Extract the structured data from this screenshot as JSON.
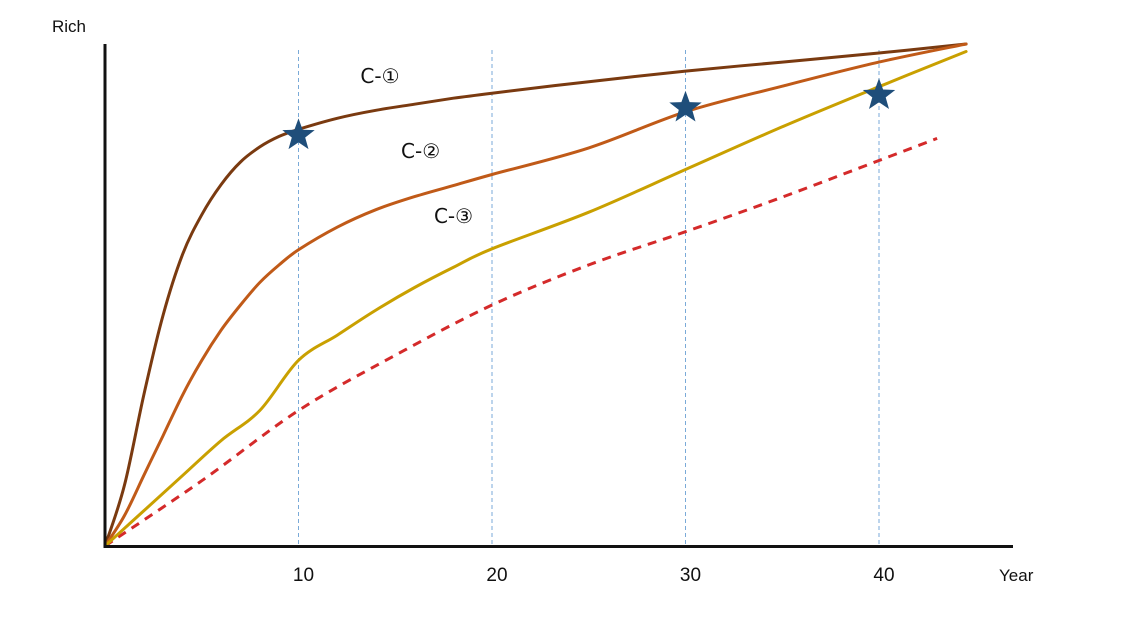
{
  "chart_data": {
    "type": "line",
    "xlabel": "Year",
    "ylabel": "Rich",
    "xlim": [
      0,
      45
    ],
    "ylim": [
      0,
      100
    ],
    "x_ticks": [
      10,
      20,
      30,
      40
    ],
    "grid": "vertical dashed lines at x ticks",
    "colors": {
      "axis": "#111111",
      "grid": "#7aaad8",
      "star": "#1f4e7a"
    },
    "series": [
      {
        "name": "C-①",
        "color": "#7a3a10",
        "style": "solid",
        "points": [
          [
            0,
            0
          ],
          [
            1,
            12
          ],
          [
            2,
            30
          ],
          [
            3,
            46
          ],
          [
            4,
            58
          ],
          [
            5,
            66
          ],
          [
            6,
            72
          ],
          [
            7,
            76.5
          ],
          [
            8,
            79.5
          ],
          [
            9,
            81.6
          ],
          [
            10,
            83
          ],
          [
            12,
            85.2
          ],
          [
            14,
            86.8
          ],
          [
            16,
            88
          ],
          [
            18,
            89.2
          ],
          [
            20,
            90.2
          ],
          [
            25,
            92.5
          ],
          [
            30,
            94.6
          ],
          [
            35,
            96.4
          ],
          [
            40,
            98.2
          ],
          [
            44.5,
            100
          ]
        ]
      },
      {
        "name": "C-②",
        "color": "#c05a18",
        "style": "solid",
        "points": [
          [
            0,
            0
          ],
          [
            1,
            6
          ],
          [
            2,
            14
          ],
          [
            3,
            22
          ],
          [
            4,
            30
          ],
          [
            5,
            37
          ],
          [
            6,
            43
          ],
          [
            7,
            48
          ],
          [
            8,
            52.5
          ],
          [
            9,
            56
          ],
          [
            10,
            59
          ],
          [
            12,
            63.5
          ],
          [
            14,
            67
          ],
          [
            16,
            69.6
          ],
          [
            18,
            71.8
          ],
          [
            20,
            74
          ],
          [
            25,
            79.3
          ],
          [
            30,
            86.5
          ],
          [
            35,
            91.6
          ],
          [
            40,
            96.4
          ],
          [
            44.5,
            100
          ]
        ]
      },
      {
        "name": "C-③",
        "color": "#c9a000",
        "style": "solid",
        "points": [
          [
            0,
            0
          ],
          [
            2,
            7
          ],
          [
            4,
            14
          ],
          [
            6,
            21
          ],
          [
            8,
            27
          ],
          [
            10,
            37
          ],
          [
            12,
            42
          ],
          [
            14,
            47
          ],
          [
            16,
            51.5
          ],
          [
            18,
            55.5
          ],
          [
            20,
            59.2
          ],
          [
            25,
            66.5
          ],
          [
            30,
            75
          ],
          [
            35,
            83.5
          ],
          [
            40,
            91.5
          ],
          [
            44.5,
            98.5
          ]
        ]
      },
      {
        "color": "#d42a2a",
        "style": "dashed",
        "points": [
          [
            0,
            0
          ],
          [
            5,
            13
          ],
          [
            10,
            27
          ],
          [
            15,
            38
          ],
          [
            20,
            48
          ],
          [
            25,
            56
          ],
          [
            30,
            62.6
          ],
          [
            35,
            69.5
          ],
          [
            40,
            76.8
          ],
          [
            43,
            81.2
          ]
        ]
      }
    ],
    "stars": [
      {
        "x": 10,
        "y": 81.8
      },
      {
        "x": 30,
        "y": 87.3
      },
      {
        "x": 40,
        "y": 89.8
      }
    ],
    "annotations": [
      {
        "text": "C-①",
        "x": 13.2,
        "y": 92.2
      },
      {
        "text": "C-②",
        "x": 15.3,
        "y": 77.3
      },
      {
        "text": "C-③",
        "x": 17,
        "y": 64.3
      }
    ]
  }
}
